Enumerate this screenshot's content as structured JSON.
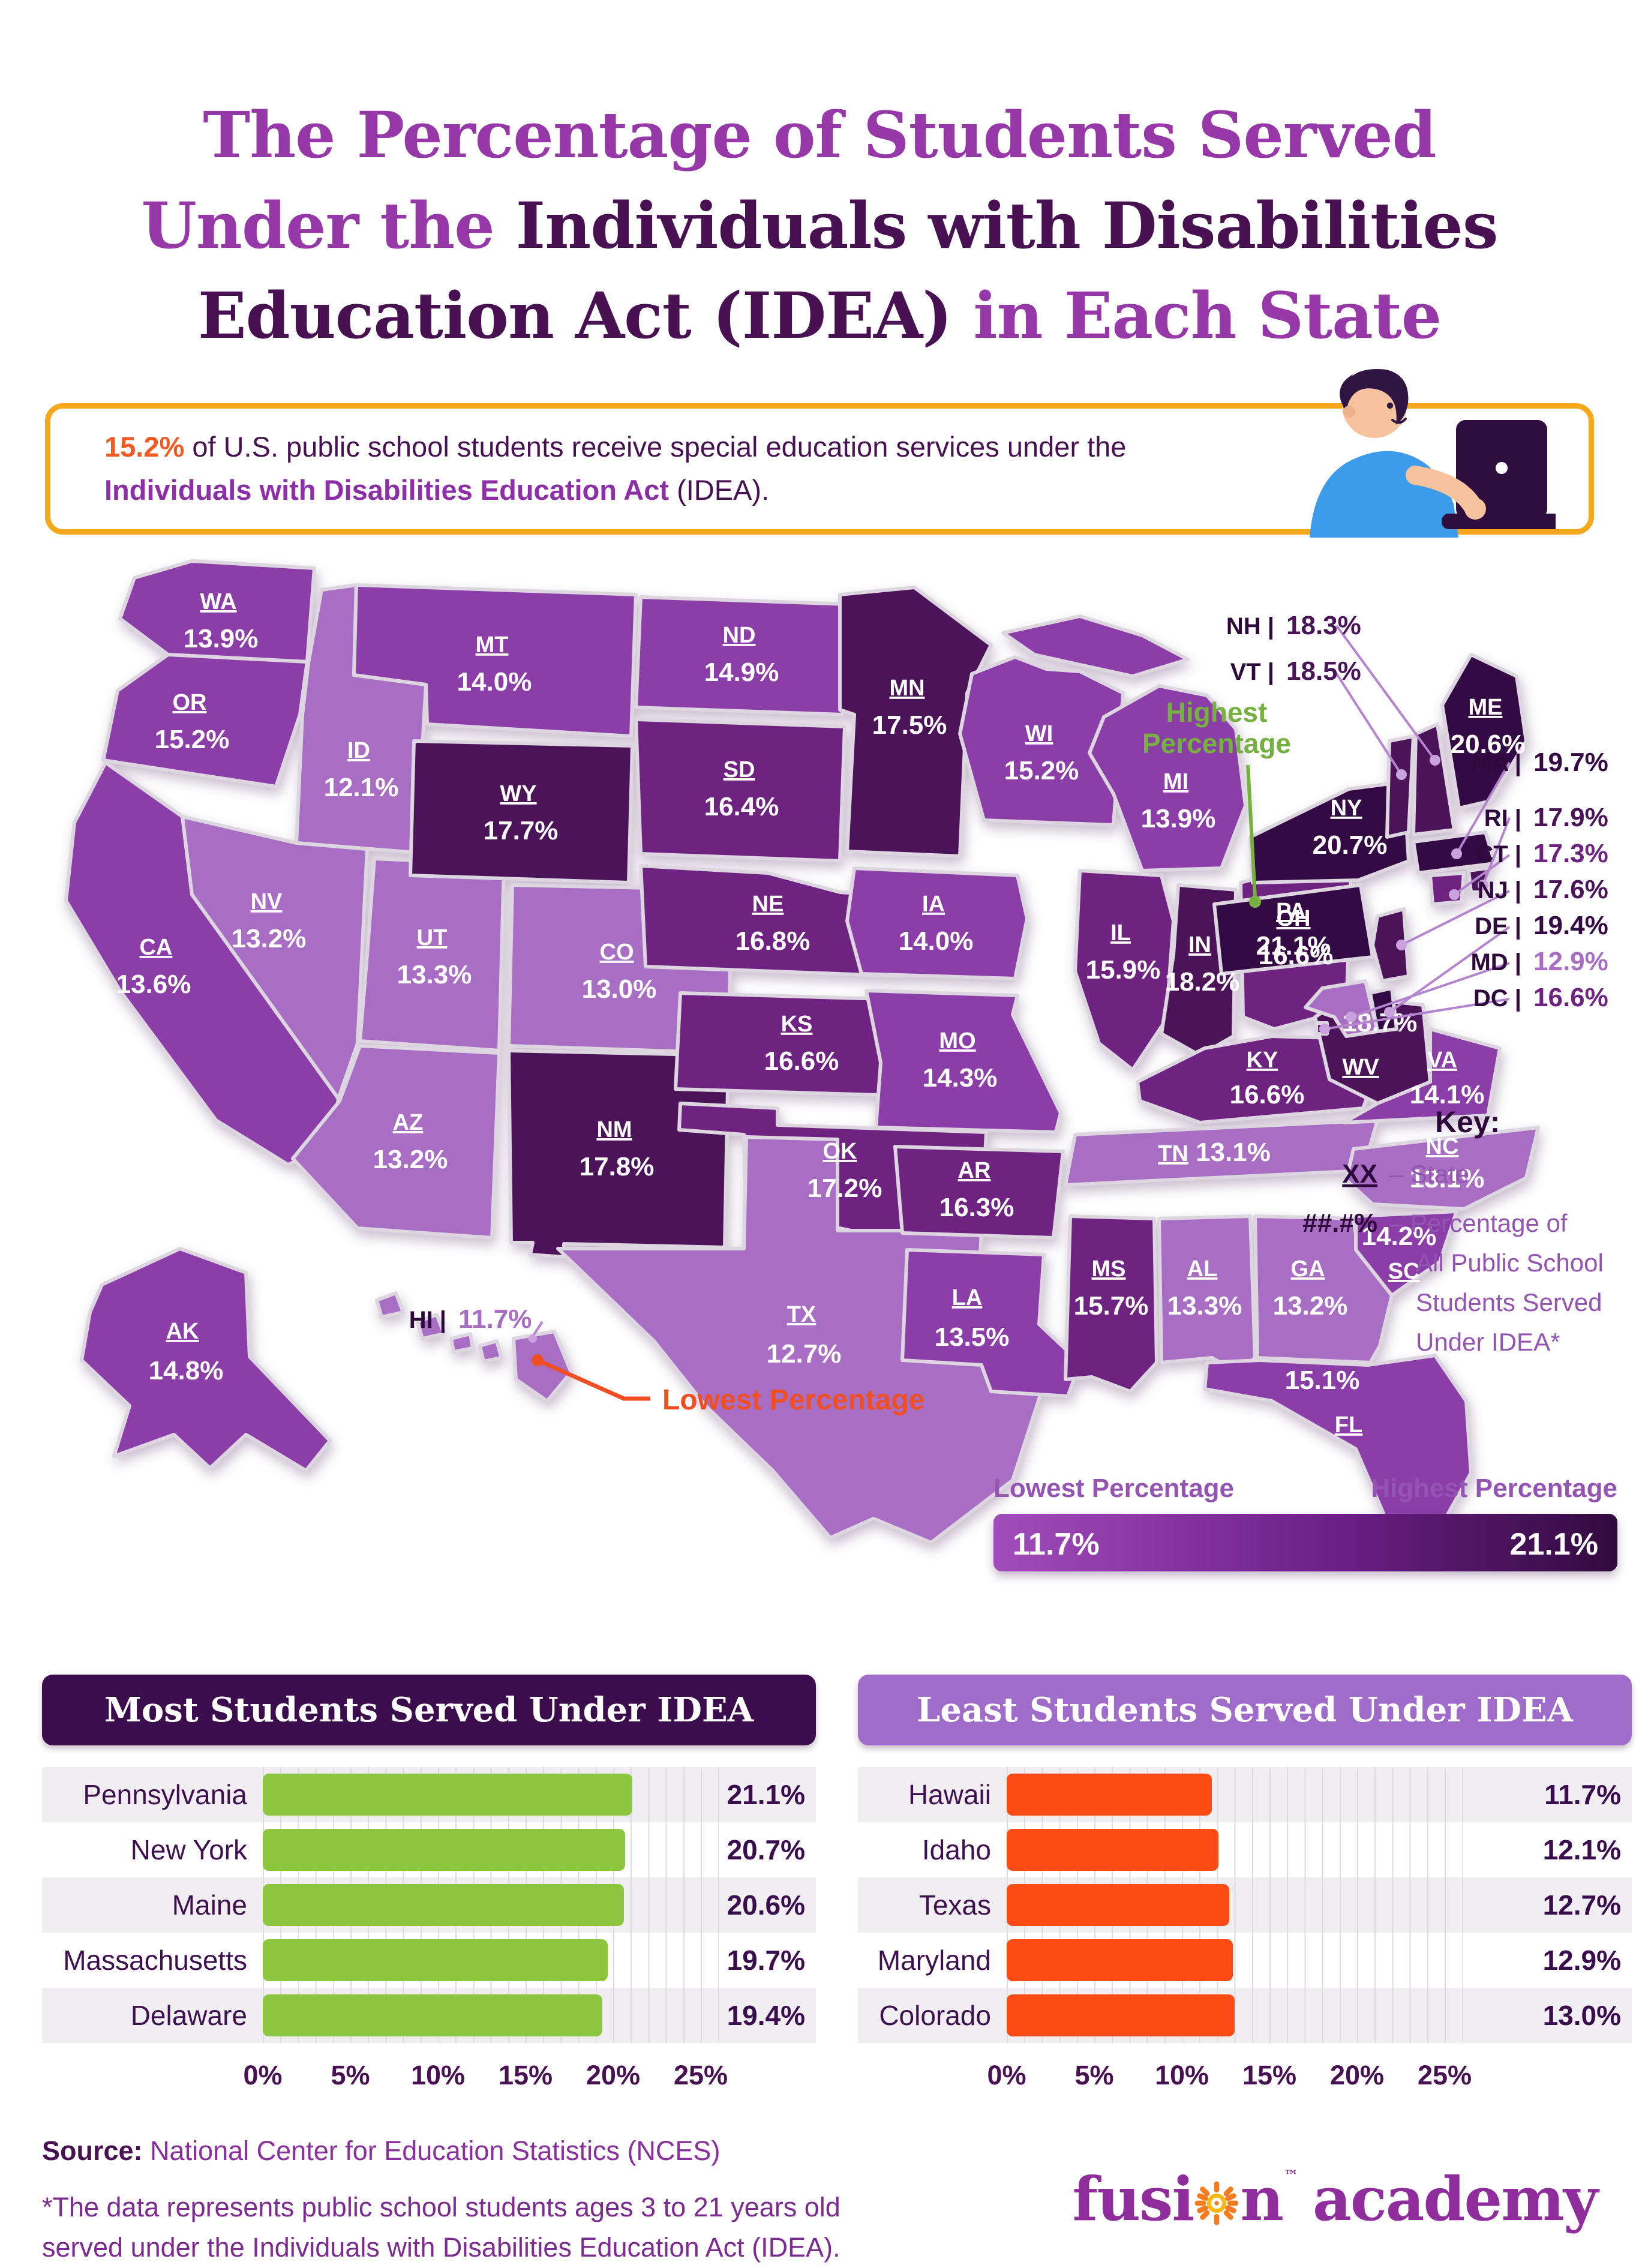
{
  "title": {
    "l1": "The Percentage of Students Served",
    "l2a": "Under the ",
    "l2b": "Individuals with Disabilities",
    "l3a": "Education Act (IDEA) ",
    "l3b": "in Each State"
  },
  "banner": {
    "stat": "15.2%",
    "pre": " of U.S. public school students receive special education services under the ",
    "bold": "Individuals with Disabilities Education Act",
    "post": " (IDEA)."
  },
  "colors": {
    "tier1": "#A76EC4",
    "tier2": "#8B3DA8",
    "tier3": "#6E2381",
    "tier4": "#4B1358",
    "tier5": "#340A44",
    "green": "#76B041",
    "orange": "#F04E23",
    "banner_border": "#F6A81C",
    "chart1_bar": "#8DC63F",
    "chart1_header": "#3B0D4D",
    "chart2_bar": "#FA4B15",
    "chart2_header": "#9F6CC9",
    "legend_start": "#A14CBC",
    "legend_end": "#320A3E"
  },
  "map": {
    "tiers": {
      "t1": "#A76EC4",
      "t2": "#8B3DA8",
      "t3": "#6E2381",
      "t4": "#4B1358",
      "t5": "#340A44"
    },
    "states": [
      {
        "abbr": "WA",
        "value": "13.9%",
        "tier": "t2"
      },
      {
        "abbr": "OR",
        "value": "15.2%",
        "tier": "t2"
      },
      {
        "abbr": "CA",
        "value": "13.6%",
        "tier": "t2"
      },
      {
        "abbr": "ID",
        "value": "12.1%",
        "tier": "t1"
      },
      {
        "abbr": "NV",
        "value": "13.2%",
        "tier": "t1"
      },
      {
        "abbr": "UT",
        "value": "13.3%",
        "tier": "t1"
      },
      {
        "abbr": "AZ",
        "value": "13.2%",
        "tier": "t1"
      },
      {
        "abbr": "MT",
        "value": "14.0%",
        "tier": "t2"
      },
      {
        "abbr": "WY",
        "value": "17.7%",
        "tier": "t4"
      },
      {
        "abbr": "CO",
        "value": "13.0%",
        "tier": "t1"
      },
      {
        "abbr": "NM",
        "value": "17.8%",
        "tier": "t4"
      },
      {
        "abbr": "ND",
        "value": "14.9%",
        "tier": "t2"
      },
      {
        "abbr": "SD",
        "value": "16.4%",
        "tier": "t3"
      },
      {
        "abbr": "NE",
        "value": "16.8%",
        "tier": "t3"
      },
      {
        "abbr": "KS",
        "value": "16.6%",
        "tier": "t3"
      },
      {
        "abbr": "OK",
        "value": "17.2%",
        "tier": "t3"
      },
      {
        "abbr": "TX",
        "value": "12.7%",
        "tier": "t1"
      },
      {
        "abbr": "MN",
        "value": "17.5%",
        "tier": "t4"
      },
      {
        "abbr": "IA",
        "value": "14.0%",
        "tier": "t2"
      },
      {
        "abbr": "MO",
        "value": "14.3%",
        "tier": "t2"
      },
      {
        "abbr": "AR",
        "value": "16.3%",
        "tier": "t3"
      },
      {
        "abbr": "LA",
        "value": "13.5%",
        "tier": "t2"
      },
      {
        "abbr": "WI",
        "value": "15.2%",
        "tier": "t2"
      },
      {
        "abbr": "IL",
        "value": "15.9%",
        "tier": "t3"
      },
      {
        "abbr": "MI",
        "value": "13.9%",
        "tier": "t2"
      },
      {
        "abbr": "IN",
        "value": "18.2%",
        "tier": "t4"
      },
      {
        "abbr": "OH",
        "value": "16.6%",
        "tier": "t3"
      },
      {
        "abbr": "KY",
        "value": "16.6%",
        "tier": "t3"
      },
      {
        "abbr": "TN",
        "value": "13.1%",
        "tier": "t1"
      },
      {
        "abbr": "MS",
        "value": "15.7%",
        "tier": "t3"
      },
      {
        "abbr": "AL",
        "value": "13.3%",
        "tier": "t1"
      },
      {
        "abbr": "GA",
        "value": "13.2%",
        "tier": "t1"
      },
      {
        "abbr": "SC",
        "value": "14.2%",
        "tier": "t2"
      },
      {
        "abbr": "NC",
        "value": "13.1%",
        "tier": "t1"
      },
      {
        "abbr": "VA",
        "value": "14.1%",
        "tier": "t2"
      },
      {
        "abbr": "WV",
        "value": "18.7%",
        "tier": "t4"
      },
      {
        "abbr": "PA",
        "value": "21.1%",
        "tier": "t5"
      },
      {
        "abbr": "NY",
        "value": "20.7%",
        "tier": "t5"
      },
      {
        "abbr": "VT",
        "value": "18.5%",
        "tier": "t4"
      },
      {
        "abbr": "NH",
        "value": "18.3%",
        "tier": "t4"
      },
      {
        "abbr": "ME",
        "value": "20.6%",
        "tier": "t5"
      },
      {
        "abbr": "MA",
        "value": "19.7%",
        "tier": "t5"
      },
      {
        "abbr": "RI",
        "value": "17.9%",
        "tier": "t4"
      },
      {
        "abbr": "CT",
        "value": "17.3%",
        "tier": "t3"
      },
      {
        "abbr": "NJ",
        "value": "17.6%",
        "tier": "t4"
      },
      {
        "abbr": "DE",
        "value": "19.4%",
        "tier": "t5"
      },
      {
        "abbr": "MD",
        "value": "12.9%",
        "tier": "t1"
      },
      {
        "abbr": "DC",
        "value": "16.6%",
        "tier": "t3"
      },
      {
        "abbr": "AK",
        "value": "14.8%",
        "tier": "t2"
      },
      {
        "abbr": "HI",
        "value": "11.7%",
        "tier": "t1"
      },
      {
        "abbr": "FL",
        "value": "15.1%",
        "tier": "t2"
      }
    ],
    "callouts_top": [
      "NH",
      "VT"
    ],
    "callouts_right": [
      "MA",
      "RI",
      "CT",
      "NJ",
      "DE",
      "MD",
      "DC"
    ],
    "hi_callout": "HI",
    "annotations": {
      "highest": {
        "line1": "Highest",
        "line2": "Percentage"
      },
      "lowest": "Lowest Percentage"
    },
    "key": {
      "title": "Key:",
      "rows": [
        {
          "sym": "XX",
          "underline": true,
          "lines": [
            "– State"
          ]
        },
        {
          "sym": "##.#%",
          "underline": false,
          "lines": [
            "– Percentage of",
            "All Public School",
            "Students Served",
            "Under IDEA*"
          ]
        }
      ]
    },
    "legend": {
      "low": "Lowest Percentage",
      "high": "Highest Percentage",
      "min": "11.7%",
      "max": "21.1%"
    }
  },
  "chart_data": [
    {
      "type": "bar",
      "title": "Most Students Served Under IDEA",
      "categories": [
        "Pennsylvania",
        "New York",
        "Maine",
        "Massachusetts",
        "Delaware"
      ],
      "values": [
        21.1,
        20.7,
        20.6,
        19.7,
        19.4
      ],
      "value_labels": [
        "21.1%",
        "20.7%",
        "20.6%",
        "19.7%",
        "19.4%"
      ],
      "xlabel": "",
      "ylabel": "",
      "xlim": [
        0,
        25
      ],
      "ticks": [
        "0%",
        "5%",
        "10%",
        "15%",
        "20%",
        "25%"
      ],
      "bar_color": "#8DC63F",
      "header_bg": "#3B0D4D",
      "grid": true,
      "legend_position": "none"
    },
    {
      "type": "bar",
      "title": "Least Students Served Under IDEA",
      "categories": [
        "Hawaii",
        "Idaho",
        "Texas",
        "Maryland",
        "Colorado"
      ],
      "values": [
        11.7,
        12.1,
        12.7,
        12.9,
        13.0
      ],
      "value_labels": [
        "11.7%",
        "12.1%",
        "12.7%",
        "12.9%",
        "13.0%"
      ],
      "xlabel": "",
      "ylabel": "",
      "xlim": [
        0,
        25
      ],
      "ticks": [
        "0%",
        "5%",
        "10%",
        "15%",
        "20%",
        "25%"
      ],
      "bar_color": "#FA4B15",
      "header_bg": "#9F6CC9",
      "grid": true,
      "legend_position": "none"
    }
  ],
  "footer": {
    "source_label": "Source:",
    "source_text": " National Center for Education Statistics (NCES)",
    "note_line1": "*The data represents public school students ages 3 to 21 years old",
    "note_line2": "served under the Individuals with Disabilities Education Act (IDEA).",
    "logo_pre": "fusi",
    "logo_post": "n",
    "logo_tm": "™",
    "logo_suffix": "academy"
  }
}
